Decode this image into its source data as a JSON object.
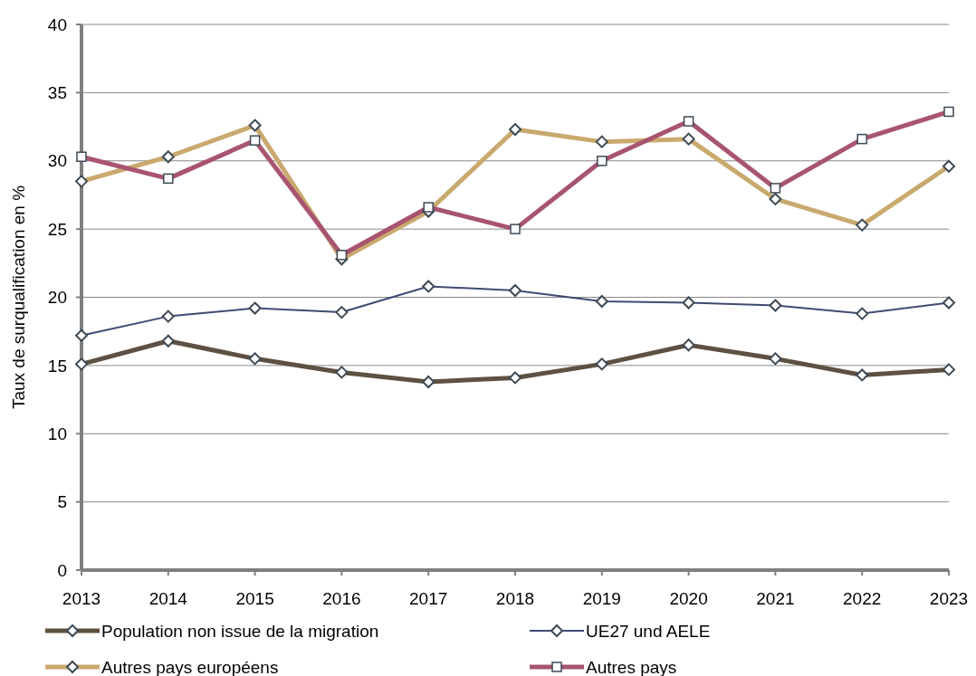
{
  "chart_data": {
    "type": "line",
    "ylabel": "Taux de surqualification en %",
    "x": [
      2013,
      2014,
      2015,
      2016,
      2017,
      2018,
      2019,
      2020,
      2021,
      2022,
      2023
    ],
    "xlim": [
      2013,
      2023
    ],
    "xticks": [
      2013,
      2014,
      2015,
      2016,
      2017,
      2018,
      2019,
      2020,
      2021,
      2022,
      2023
    ],
    "ylim": [
      0,
      40
    ],
    "yticks": [
      0,
      5,
      10,
      15,
      20,
      25,
      30,
      35,
      40
    ],
    "grid": "y",
    "legend": "bottom",
    "series": [
      {
        "name": "Population non issue de la migration",
        "color": "#5e5042",
        "marker": "diamond",
        "values": [
          15.1,
          16.8,
          15.5,
          14.5,
          13.8,
          14.1,
          15.1,
          16.5,
          15.5,
          14.3,
          14.7
        ]
      },
      {
        "name": "UE27 und AELE",
        "color": "#3f4a75",
        "marker": "diamond",
        "values": [
          17.2,
          18.6,
          19.2,
          18.9,
          20.8,
          20.5,
          19.7,
          19.6,
          19.4,
          18.8,
          19.6
        ]
      },
      {
        "name": "Autres pays européens",
        "color": "#c9a96e",
        "marker": "diamond",
        "values": [
          28.5,
          30.3,
          32.6,
          22.8,
          26.3,
          32.3,
          31.4,
          31.6,
          27.2,
          25.3,
          29.6
        ]
      },
      {
        "name": "Autres pays",
        "color": "#a85470",
        "marker": "square",
        "values": [
          30.3,
          28.7,
          31.5,
          23.1,
          26.6,
          25.0,
          30.0,
          32.9,
          28.0,
          31.6,
          33.6
        ]
      }
    ]
  }
}
